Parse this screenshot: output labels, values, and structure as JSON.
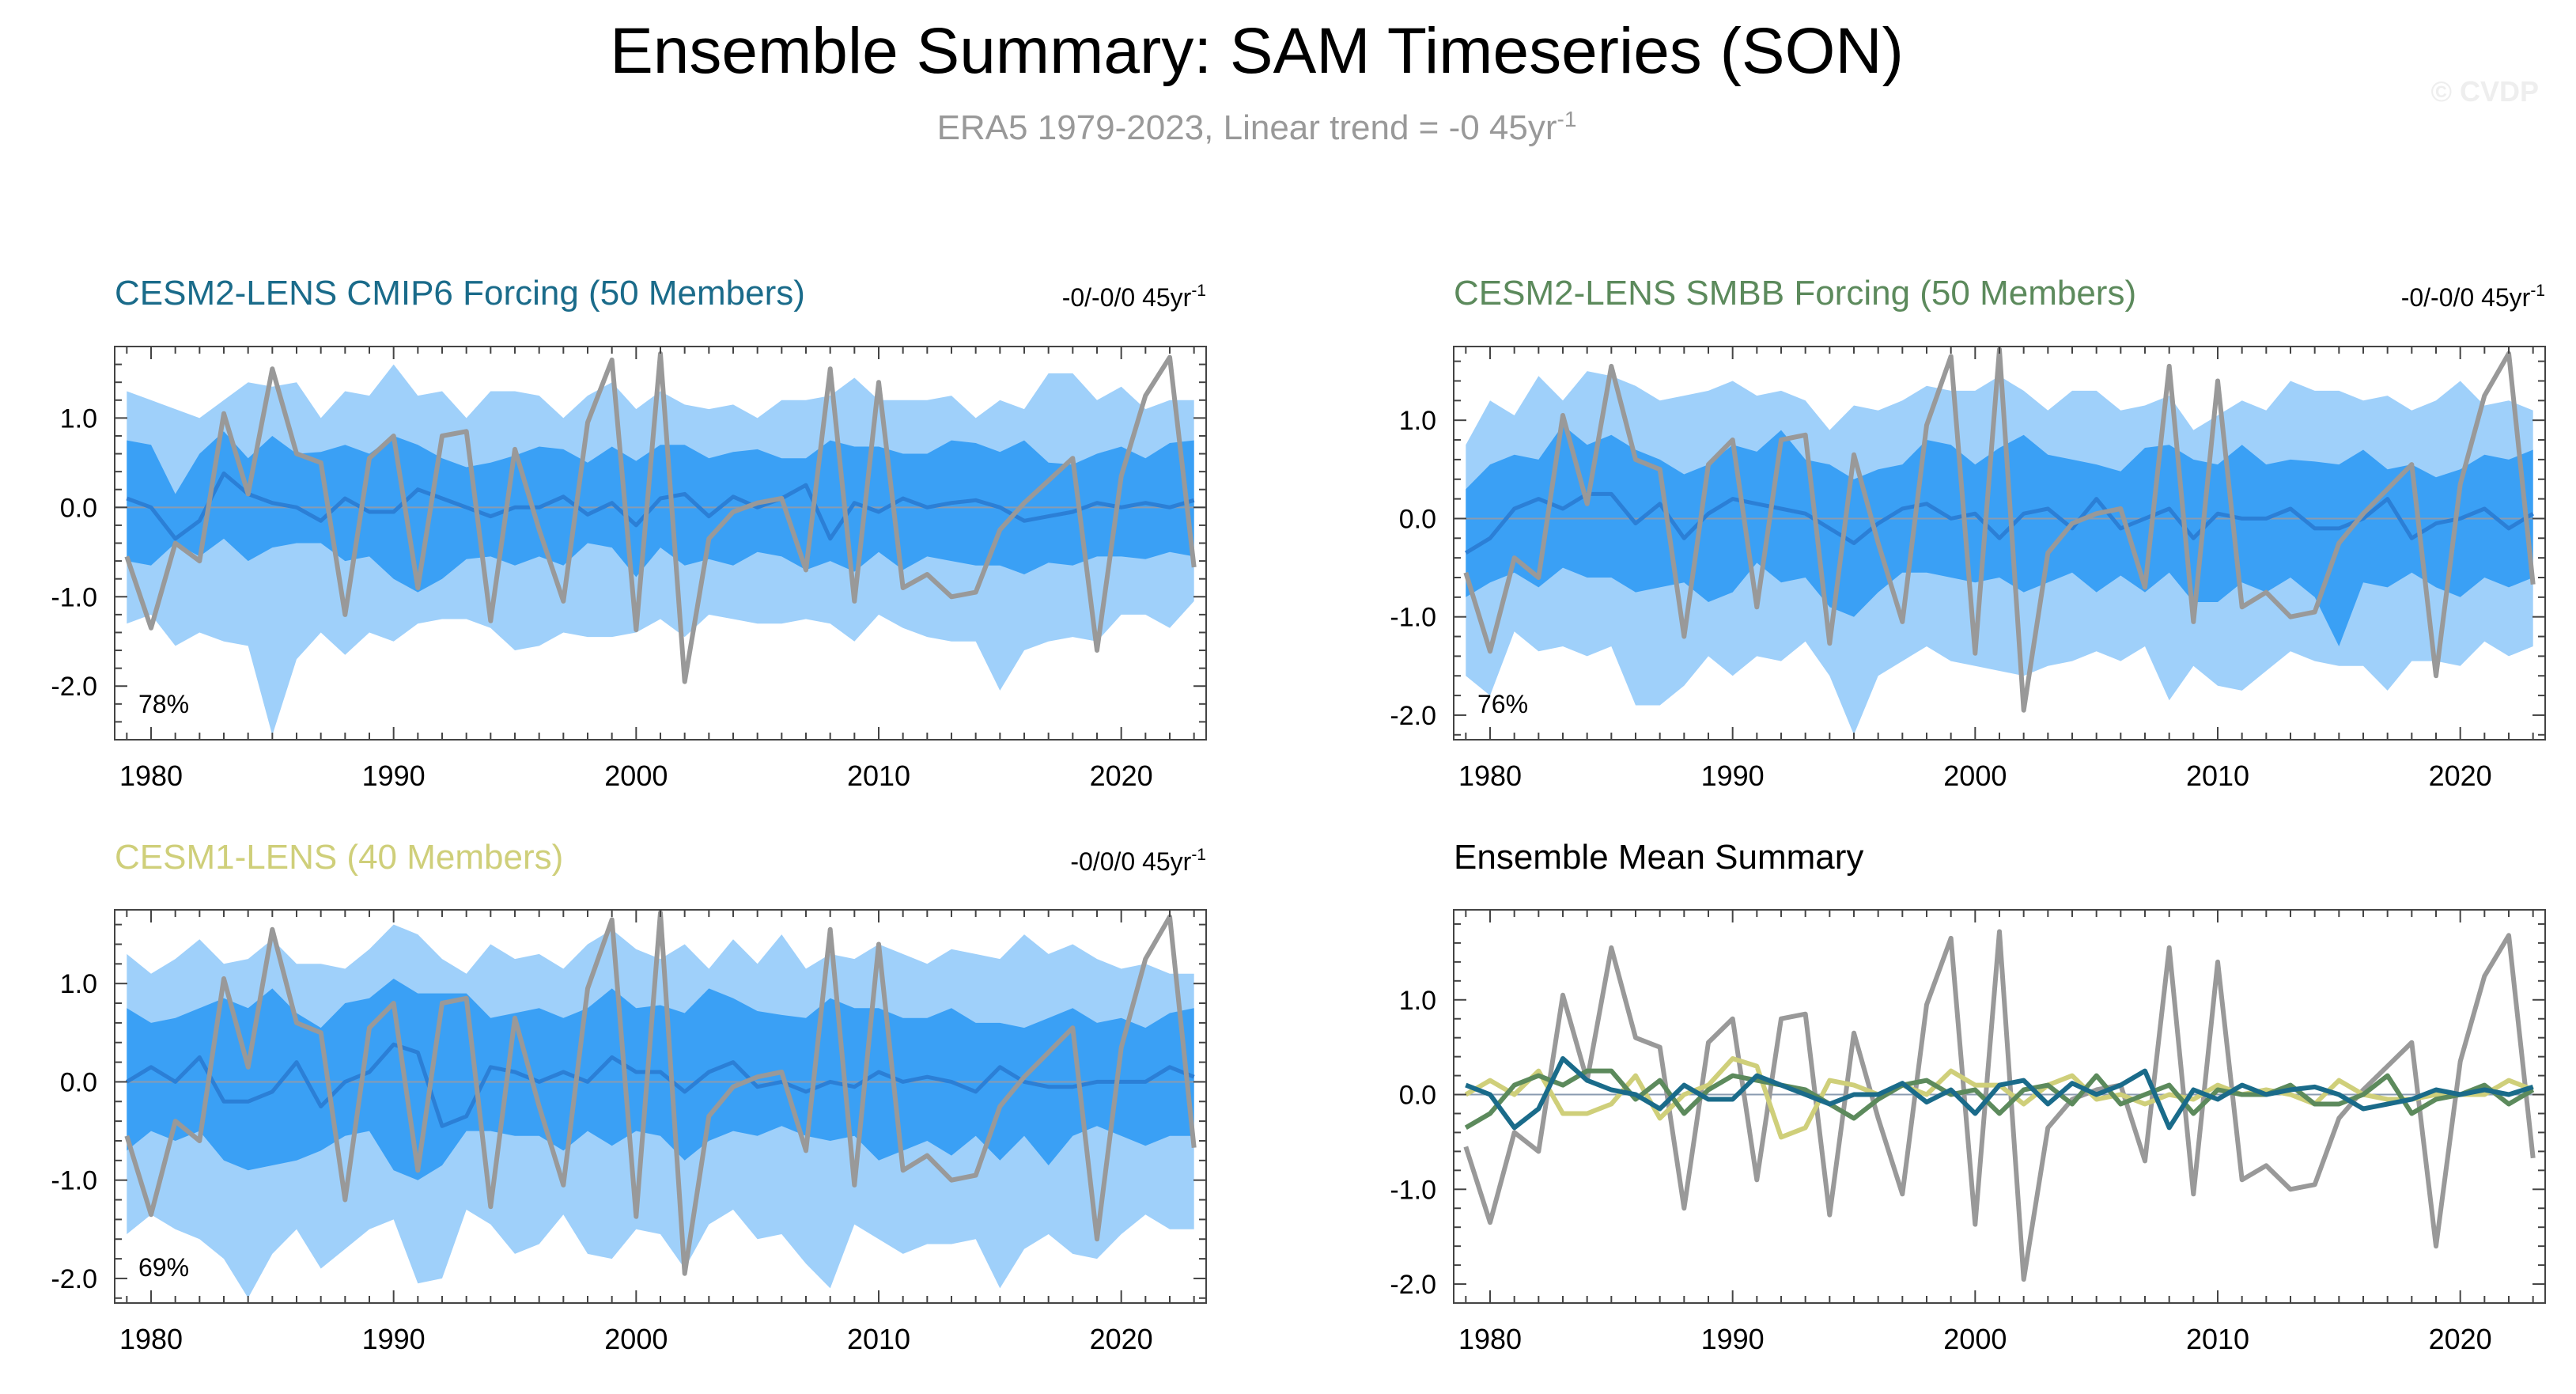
{
  "figure": {
    "title": "Ensemble Summary: SAM Timeseries (SON)",
    "subtitle_text": "ERA5 1979-2023, Linear trend = -0 45yr",
    "subtitle_sup": "-1",
    "watermark": "© CVDP"
  },
  "colors": {
    "outer_band": "#9fd0fa",
    "inner_band": "#3aa0f5",
    "ens_mean_line": "#2b7fd6",
    "obs_line": "#999999",
    "cmip6": "#1a6b8a",
    "smbb": "#5c8a5c",
    "cesm1": "#cfcf7a"
  },
  "chart_data": [
    {
      "id": "cmip6",
      "type": "line",
      "title": "CESM2-LENS CMIP6 Forcing (50 Members)",
      "title_color": "#1a6b8a",
      "trend_text": "-0/-0/0 45yr",
      "trend_sup": "-1",
      "percent": "78%",
      "x_start": 1979,
      "xlim": [
        1978.5,
        2023.5
      ],
      "ylim": [
        -2.6,
        1.8
      ],
      "xticks": [
        1980,
        1990,
        2000,
        2010,
        2020
      ],
      "yticks": [
        1.0,
        0.0,
        -1.0,
        -2.0
      ],
      "ytick_labels": [
        "1.0",
        "0.0",
        "-1.0",
        "-2.0"
      ],
      "obs": [
        -0.55,
        -1.35,
        -0.4,
        -0.6,
        1.05,
        0.15,
        1.55,
        0.6,
        0.5,
        -1.2,
        0.55,
        0.8,
        -0.9,
        0.8,
        0.85,
        -1.27,
        0.65,
        -0.25,
        -1.05,
        0.95,
        1.65,
        -1.37,
        1.72,
        -1.95,
        -0.35,
        -0.05,
        0.05,
        0.1,
        -0.7,
        1.55,
        -1.05,
        1.4,
        -0.9,
        -0.75,
        -1.0,
        -0.95,
        -0.25,
        0.05,
        0.3,
        0.55,
        -1.6,
        0.35,
        1.25,
        1.68,
        -0.67
      ],
      "ens_mean": [
        0.1,
        0.0,
        -0.35,
        -0.15,
        0.38,
        0.15,
        0.05,
        0.0,
        -0.15,
        0.1,
        -0.05,
        -0.05,
        0.2,
        0.1,
        0.0,
        -0.1,
        0.0,
        0.0,
        0.12,
        -0.08,
        0.05,
        -0.2,
        0.1,
        0.15,
        -0.1,
        0.12,
        0.0,
        0.1,
        0.25,
        -0.35,
        0.05,
        -0.05,
        0.1,
        0.0,
        0.05,
        0.08,
        0.0,
        -0.15,
        -0.1,
        -0.05,
        0.05,
        0.0,
        0.05,
        0.0,
        0.08
      ],
      "inner_hi": [
        0.75,
        0.7,
        0.15,
        0.6,
        0.85,
        0.55,
        0.8,
        0.6,
        0.62,
        0.7,
        0.6,
        0.8,
        0.7,
        0.55,
        0.45,
        0.5,
        0.58,
        0.68,
        0.65,
        0.5,
        0.68,
        0.52,
        0.7,
        0.7,
        0.55,
        0.62,
        0.65,
        0.55,
        0.55,
        0.75,
        0.68,
        0.68,
        0.6,
        0.6,
        0.75,
        0.72,
        0.62,
        0.75,
        0.5,
        0.48,
        0.6,
        0.68,
        0.55,
        0.72,
        0.75
      ],
      "inner_lo": [
        -0.6,
        -0.65,
        -0.4,
        -0.55,
        -0.35,
        -0.6,
        -0.45,
        -0.4,
        -0.4,
        -0.6,
        -0.55,
        -0.8,
        -0.95,
        -0.8,
        -0.58,
        -0.55,
        -0.65,
        -0.55,
        -0.65,
        -0.4,
        -0.45,
        -0.78,
        -0.45,
        -0.65,
        -0.58,
        -0.65,
        -0.5,
        -0.55,
        -0.7,
        -0.6,
        -0.72,
        -0.5,
        -0.7,
        -0.55,
        -0.6,
        -0.65,
        -0.65,
        -0.75,
        -0.62,
        -0.65,
        -0.55,
        -0.55,
        -0.58,
        -0.5,
        -0.55
      ],
      "outer_hi": [
        1.3,
        1.2,
        1.1,
        1.0,
        1.2,
        1.4,
        1.35,
        1.4,
        1.0,
        1.3,
        1.25,
        1.6,
        1.25,
        1.3,
        1.0,
        1.3,
        1.3,
        1.25,
        1.0,
        1.25,
        1.4,
        1.1,
        1.3,
        1.15,
        1.1,
        1.15,
        1.0,
        1.2,
        1.2,
        1.25,
        1.45,
        1.2,
        1.2,
        1.2,
        1.25,
        1.0,
        1.2,
        1.1,
        1.5,
        1.5,
        1.2,
        1.35,
        1.1,
        1.2,
        1.2
      ],
      "outer_lo": [
        -1.3,
        -1.2,
        -1.55,
        -1.4,
        -1.5,
        -1.55,
        -2.55,
        -1.7,
        -1.4,
        -1.65,
        -1.4,
        -1.5,
        -1.3,
        -1.25,
        -1.25,
        -1.35,
        -1.6,
        -1.55,
        -1.4,
        -1.45,
        -1.45,
        -1.4,
        -1.25,
        -1.45,
        -1.2,
        -1.25,
        -1.3,
        -1.3,
        -1.25,
        -1.3,
        -1.5,
        -1.2,
        -1.35,
        -1.45,
        -1.5,
        -1.5,
        -2.05,
        -1.6,
        -1.5,
        -1.45,
        -1.5,
        -1.2,
        -1.2,
        -1.35,
        -1.05
      ]
    },
    {
      "id": "smbb",
      "type": "line",
      "title": "CESM2-LENS SMBB Forcing (50 Members)",
      "title_color": "#5c8a5c",
      "trend_text": "-0/-0/0 45yr",
      "trend_sup": "-1",
      "percent": "76%",
      "x_start": 1979,
      "xlim": [
        1978.5,
        2023.5
      ],
      "ylim": [
        -2.25,
        1.75
      ],
      "xticks": [
        1980,
        1990,
        2000,
        2010,
        2020
      ],
      "yticks": [
        1.0,
        0.0,
        -1.0,
        -2.0
      ],
      "ytick_labels": [
        "1.0",
        "0.0",
        "-1.0",
        "-2.0"
      ],
      "obs": [
        -0.55,
        -1.35,
        -0.4,
        -0.6,
        1.05,
        0.15,
        1.55,
        0.6,
        0.5,
        -1.2,
        0.55,
        0.8,
        -0.9,
        0.8,
        0.85,
        -1.27,
        0.65,
        -0.25,
        -1.05,
        0.95,
        1.65,
        -1.37,
        1.72,
        -1.95,
        -0.35,
        -0.05,
        0.05,
        0.1,
        -0.7,
        1.55,
        -1.05,
        1.4,
        -0.9,
        -0.75,
        -1.0,
        -0.95,
        -0.25,
        0.05,
        0.3,
        0.55,
        -1.6,
        0.35,
        1.25,
        1.68,
        -0.67
      ],
      "ens_mean": [
        -0.35,
        -0.2,
        0.1,
        0.2,
        0.1,
        0.25,
        0.25,
        -0.05,
        0.15,
        -0.2,
        0.05,
        0.2,
        0.15,
        0.1,
        0.05,
        -0.1,
        -0.25,
        -0.05,
        0.1,
        0.15,
        0.0,
        0.05,
        -0.2,
        0.05,
        0.1,
        -0.1,
        0.2,
        -0.1,
        0.0,
        0.1,
        -0.2,
        0.05,
        0.0,
        0.0,
        0.1,
        -0.1,
        -0.1,
        0.0,
        0.2,
        -0.2,
        -0.05,
        0.0,
        0.1,
        -0.1,
        0.05
      ],
      "inner_hi": [
        0.3,
        0.55,
        0.65,
        0.6,
        0.95,
        0.75,
        0.85,
        0.7,
        0.6,
        0.45,
        0.55,
        0.75,
        0.68,
        0.9,
        0.6,
        0.55,
        0.4,
        0.5,
        0.55,
        0.8,
        0.75,
        0.55,
        0.72,
        0.85,
        0.65,
        0.6,
        0.55,
        0.48,
        0.72,
        0.75,
        0.6,
        0.55,
        0.75,
        0.55,
        0.6,
        0.58,
        0.55,
        0.7,
        0.5,
        0.55,
        0.42,
        0.5,
        0.65,
        0.6,
        0.7
      ],
      "inner_lo": [
        -0.8,
        -0.65,
        -0.55,
        -0.7,
        -0.5,
        -0.6,
        -0.6,
        -0.75,
        -0.7,
        -0.65,
        -0.85,
        -0.75,
        -0.45,
        -0.65,
        -0.6,
        -0.9,
        -1.0,
        -0.75,
        -0.55,
        -0.55,
        -0.6,
        -0.65,
        -0.6,
        -0.75,
        -0.65,
        -0.55,
        -0.75,
        -0.58,
        -0.75,
        -0.55,
        -0.85,
        -0.85,
        -0.65,
        -0.75,
        -0.6,
        -0.8,
        -1.3,
        -0.65,
        -0.7,
        -0.55,
        -0.7,
        -0.8,
        -0.6,
        -0.7,
        -0.6
      ],
      "outer_hi": [
        0.75,
        1.2,
        1.05,
        1.45,
        1.2,
        1.5,
        1.45,
        1.35,
        1.2,
        1.25,
        1.3,
        1.4,
        1.25,
        1.3,
        1.2,
        0.9,
        1.15,
        1.1,
        1.2,
        1.35,
        1.3,
        1.3,
        1.45,
        1.3,
        1.1,
        1.3,
        1.3,
        1.1,
        1.15,
        1.25,
        0.9,
        1.05,
        1.2,
        1.1,
        1.4,
        1.3,
        1.3,
        1.2,
        1.25,
        1.1,
        1.2,
        1.4,
        1.15,
        1.2,
        1.1
      ],
      "outer_lo": [
        -1.6,
        -1.8,
        -1.15,
        -1.35,
        -1.3,
        -1.4,
        -1.3,
        -1.9,
        -1.9,
        -1.7,
        -1.4,
        -1.6,
        -1.4,
        -1.45,
        -1.25,
        -1.6,
        -2.2,
        -1.6,
        -1.45,
        -1.3,
        -1.45,
        -1.5,
        -1.55,
        -1.6,
        -1.5,
        -1.45,
        -1.35,
        -1.45,
        -1.3,
        -1.85,
        -1.5,
        -1.7,
        -1.75,
        -1.55,
        -1.35,
        -1.45,
        -1.5,
        -1.5,
        -1.75,
        -1.45,
        -1.45,
        -1.5,
        -1.25,
        -1.4,
        -1.3
      ]
    },
    {
      "id": "cesm1",
      "type": "line",
      "title": "CESM1-LENS (40 Members)",
      "title_color": "#cfcf7a",
      "trend_text": "-0/0/0 45yr",
      "trend_sup": "-1",
      "percent": "69%",
      "x_start": 1979,
      "xlim": [
        1978.5,
        2023.5
      ],
      "ylim": [
        -2.25,
        1.75
      ],
      "xticks": [
        1980,
        1990,
        2000,
        2010,
        2020
      ],
      "yticks": [
        1.0,
        0.0,
        -1.0,
        -2.0
      ],
      "ytick_labels": [
        "1.0",
        "0.0",
        "-1.0",
        "-2.0"
      ],
      "obs": [
        -0.55,
        -1.35,
        -0.4,
        -0.6,
        1.05,
        0.15,
        1.55,
        0.6,
        0.5,
        -1.2,
        0.55,
        0.8,
        -0.9,
        0.8,
        0.85,
        -1.27,
        0.65,
        -0.25,
        -1.05,
        0.95,
        1.65,
        -1.37,
        1.72,
        -1.95,
        -0.35,
        -0.05,
        0.05,
        0.1,
        -0.7,
        1.55,
        -1.05,
        1.4,
        -0.9,
        -0.75,
        -1.0,
        -0.95,
        -0.25,
        0.05,
        0.3,
        0.55,
        -1.6,
        0.35,
        1.25,
        1.68,
        -0.67
      ],
      "ens_mean": [
        0.0,
        0.15,
        0.0,
        0.25,
        -0.2,
        -0.2,
        -0.1,
        0.2,
        -0.25,
        0.0,
        0.1,
        0.38,
        0.3,
        -0.45,
        -0.35,
        0.15,
        0.1,
        0.0,
        0.1,
        0.0,
        0.25,
        0.1,
        0.1,
        -0.1,
        0.1,
        0.2,
        -0.05,
        0.0,
        -0.1,
        0.0,
        -0.05,
        0.1,
        0.0,
        0.05,
        0.0,
        -0.1,
        0.15,
        0.0,
        -0.05,
        -0.05,
        0.0,
        0.0,
        0.0,
        0.15,
        0.05
      ],
      "inner_hi": [
        0.75,
        0.6,
        0.65,
        0.75,
        0.85,
        0.75,
        0.95,
        0.7,
        0.55,
        0.8,
        0.85,
        1.05,
        0.9,
        0.9,
        0.9,
        0.65,
        0.7,
        0.75,
        0.65,
        0.75,
        0.95,
        0.75,
        0.78,
        0.7,
        0.95,
        0.85,
        0.72,
        0.68,
        0.65,
        0.85,
        0.75,
        0.75,
        0.65,
        0.65,
        0.75,
        0.6,
        0.6,
        0.55,
        0.65,
        0.75,
        0.6,
        0.65,
        0.55,
        0.7,
        0.75
      ],
      "inner_lo": [
        -0.7,
        -0.5,
        -0.6,
        -0.5,
        -0.8,
        -0.9,
        -0.85,
        -0.8,
        -0.7,
        -0.55,
        -0.5,
        -0.9,
        -1.0,
        -0.85,
        -0.5,
        -0.5,
        -0.55,
        -0.55,
        -0.7,
        -0.5,
        -0.65,
        -0.5,
        -0.55,
        -0.8,
        -0.6,
        -0.5,
        -0.55,
        -0.45,
        -0.55,
        -0.6,
        -0.55,
        -0.8,
        -0.7,
        -0.6,
        -0.75,
        -0.55,
        -0.8,
        -0.55,
        -0.85,
        -0.55,
        -0.45,
        -0.55,
        -0.65,
        -0.55,
        -0.55
      ],
      "outer_hi": [
        1.3,
        1.1,
        1.25,
        1.45,
        1.2,
        1.25,
        1.45,
        1.2,
        1.2,
        1.15,
        1.35,
        1.6,
        1.5,
        1.25,
        1.1,
        1.4,
        1.25,
        1.3,
        1.15,
        1.4,
        1.55,
        1.35,
        1.25,
        1.4,
        1.15,
        1.45,
        1.2,
        1.5,
        1.15,
        1.3,
        1.25,
        1.4,
        1.3,
        1.2,
        1.35,
        1.3,
        1.25,
        1.5,
        1.3,
        1.4,
        1.25,
        1.15,
        1.2,
        1.1,
        1.1
      ],
      "outer_lo": [
        -1.55,
        -1.35,
        -1.5,
        -1.6,
        -1.8,
        -2.2,
        -1.75,
        -1.5,
        -1.9,
        -1.7,
        -1.5,
        -1.4,
        -2.05,
        -2.0,
        -1.3,
        -1.45,
        -1.75,
        -1.65,
        -1.35,
        -1.75,
        -1.8,
        -1.5,
        -1.55,
        -1.9,
        -1.45,
        -1.3,
        -1.6,
        -1.55,
        -1.85,
        -2.1,
        -1.45,
        -1.6,
        -1.75,
        -1.65,
        -1.65,
        -1.6,
        -2.1,
        -1.7,
        -1.55,
        -1.75,
        -1.8,
        -1.55,
        -1.35,
        -1.5,
        -1.5
      ]
    },
    {
      "id": "summary",
      "type": "line",
      "title": "Ensemble Mean Summary",
      "title_color": "#000000",
      "x_start": 1979,
      "xlim": [
        1978.5,
        2023.5
      ],
      "ylim": [
        -2.2,
        1.95
      ],
      "xticks": [
        1980,
        1990,
        2000,
        2010,
        2020
      ],
      "yticks": [
        1.0,
        0.0,
        -1.0,
        -2.0
      ],
      "ytick_labels": [
        "1.0",
        "0.0",
        "-1.0",
        "-2.0"
      ],
      "series": [
        {
          "name": "ERA5",
          "color": "#999999",
          "values": [
            -0.55,
            -1.35,
            -0.4,
            -0.6,
            1.05,
            0.15,
            1.55,
            0.6,
            0.5,
            -1.2,
            0.55,
            0.8,
            -0.9,
            0.8,
            0.85,
            -1.27,
            0.65,
            -0.25,
            -1.05,
            0.95,
            1.65,
            -1.37,
            1.72,
            -1.95,
            -0.35,
            -0.05,
            0.05,
            0.1,
            -0.7,
            1.55,
            -1.05,
            1.4,
            -0.9,
            -0.75,
            -1.0,
            -0.95,
            -0.25,
            0.05,
            0.3,
            0.55,
            -1.6,
            0.35,
            1.25,
            1.68,
            -0.67
          ]
        },
        {
          "name": "CESM1-LENS",
          "color": "#cfcf7a",
          "values": [
            0.0,
            0.15,
            0.0,
            0.25,
            -0.2,
            -0.2,
            -0.1,
            0.2,
            -0.25,
            0.0,
            0.1,
            0.38,
            0.3,
            -0.45,
            -0.35,
            0.15,
            0.1,
            0.0,
            0.1,
            0.0,
            0.25,
            0.1,
            0.1,
            -0.1,
            0.1,
            0.2,
            -0.05,
            0.0,
            -0.1,
            0.0,
            -0.05,
            0.1,
            0.0,
            0.05,
            0.0,
            -0.1,
            0.15,
            0.0,
            -0.05,
            -0.05,
            0.0,
            0.0,
            0.0,
            0.15,
            0.05
          ]
        },
        {
          "name": "CESM2-LENS SMBB",
          "color": "#5c8a5c",
          "values": [
            -0.35,
            -0.2,
            0.1,
            0.2,
            0.1,
            0.25,
            0.25,
            -0.05,
            0.15,
            -0.2,
            0.05,
            0.2,
            0.15,
            0.1,
            0.05,
            -0.1,
            -0.25,
            -0.05,
            0.1,
            0.15,
            0.0,
            0.05,
            -0.2,
            0.05,
            0.1,
            -0.1,
            0.2,
            -0.1,
            0.0,
            0.1,
            -0.2,
            0.05,
            0.0,
            0.0,
            0.1,
            -0.1,
            -0.1,
            0.0,
            0.2,
            -0.2,
            -0.05,
            0.0,
            0.1,
            -0.1,
            0.05
          ]
        },
        {
          "name": "CESM2-LENS CMIP6",
          "color": "#1a6b8a",
          "values": [
            0.1,
            0.0,
            -0.35,
            -0.15,
            0.38,
            0.15,
            0.05,
            0.0,
            -0.15,
            0.1,
            -0.05,
            -0.05,
            0.2,
            0.1,
            0.0,
            -0.1,
            0.0,
            0.0,
            0.12,
            -0.08,
            0.05,
            -0.2,
            0.1,
            0.15,
            -0.1,
            0.12,
            0.0,
            0.1,
            0.25,
            -0.35,
            0.05,
            -0.05,
            0.1,
            0.0,
            0.05,
            0.08,
            0.0,
            -0.15,
            -0.1,
            -0.05,
            0.05,
            0.0,
            0.05,
            0.0,
            0.08
          ]
        }
      ]
    }
  ]
}
